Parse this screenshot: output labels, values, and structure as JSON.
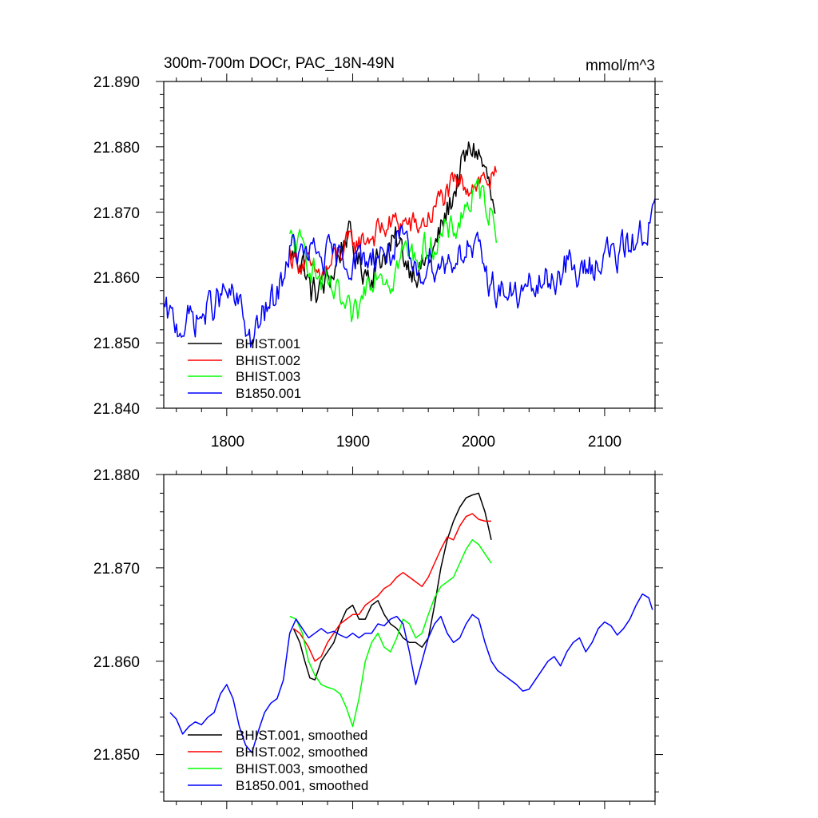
{
  "chart_data": [
    {
      "type": "line",
      "title": "300m-700m DOCr, PAC_18N-49N",
      "units": "mmol/m^3",
      "xlim": [
        1750,
        2140
      ],
      "ylim": [
        21.84,
        21.89
      ],
      "xticks": [
        1800,
        1900,
        2000,
        2100
      ],
      "xtick_labels": [
        "1800",
        "1900",
        "2000",
        "2100"
      ],
      "yticks": [
        21.84,
        21.85,
        21.86,
        21.87,
        21.88,
        21.89
      ],
      "ytick_labels": [
        "21.840",
        "21.850",
        "21.860",
        "21.870",
        "21.880",
        "21.890"
      ],
      "legend_position": "bottom-left",
      "series": [
        {
          "name": "BHIST.001",
          "color": "#000000",
          "noise": 0.0022,
          "x": [
            1850,
            1860,
            1867,
            1875,
            1885,
            1895,
            1905,
            1915,
            1925,
            1935,
            1945,
            1955,
            1965,
            1975,
            1985,
            1990,
            1995,
            2000,
            2005,
            2008,
            2013
          ],
          "y": [
            21.8635,
            21.863,
            21.8575,
            21.858,
            21.861,
            21.867,
            21.862,
            21.861,
            21.864,
            21.865,
            21.862,
            21.8615,
            21.864,
            21.87,
            21.876,
            21.878,
            21.88,
            21.879,
            21.876,
            21.874,
            21.8685
          ]
        },
        {
          "name": "BHIST.002",
          "color": "#ff0000",
          "noise": 0.0018,
          "x": [
            1850,
            1860,
            1870,
            1880,
            1890,
            1900,
            1910,
            1920,
            1930,
            1940,
            1950,
            1960,
            1970,
            1980,
            1990,
            2000,
            2005,
            2010,
            2014
          ],
          "y": [
            21.8635,
            21.8625,
            21.86,
            21.861,
            21.864,
            21.865,
            21.866,
            21.867,
            21.868,
            21.8685,
            21.8675,
            21.869,
            21.872,
            21.8735,
            21.8745,
            21.875,
            21.8752,
            21.8748,
            21.875
          ]
        },
        {
          "name": "BHIST.003",
          "color": "#00ff00",
          "noise": 0.002,
          "x": [
            1850,
            1855,
            1865,
            1875,
            1885,
            1895,
            1900,
            1905,
            1912,
            1920,
            1930,
            1940,
            1950,
            1960,
            1970,
            1980,
            1990,
            2000,
            2005,
            2010,
            2014
          ],
          "y": [
            21.8655,
            21.865,
            21.863,
            21.859,
            21.8575,
            21.8545,
            21.853,
            21.8545,
            21.86,
            21.862,
            21.86,
            21.864,
            21.863,
            21.865,
            21.866,
            21.867,
            21.871,
            21.873,
            21.872,
            21.87,
            21.8675
          ]
        },
        {
          "name": "B1850.001",
          "color": "#0000ff",
          "noise": 0.0022,
          "x": [
            1750,
            1760,
            1770,
            1780,
            1790,
            1800,
            1810,
            1820,
            1830,
            1840,
            1850,
            1860,
            1870,
            1880,
            1890,
            1900,
            1910,
            1920,
            1930,
            1940,
            1950,
            1960,
            1970,
            1980,
            1990,
            2000,
            2010,
            2020,
            2030,
            2040,
            2050,
            2060,
            2070,
            2080,
            2090,
            2100,
            2110,
            2120,
            2130,
            2140
          ],
          "y": [
            21.8545,
            21.8525,
            21.8535,
            21.854,
            21.856,
            21.8575,
            21.8555,
            21.85,
            21.8545,
            21.857,
            21.8645,
            21.863,
            21.8635,
            21.863,
            21.8625,
            21.863,
            21.8625,
            21.864,
            21.864,
            21.865,
            21.86,
            21.863,
            21.862,
            21.863,
            21.865,
            21.863,
            21.859,
            21.858,
            21.857,
            21.858,
            21.859,
            21.86,
            21.862,
            21.86,
            21.862,
            21.864,
            21.863,
            21.865,
            21.867,
            21.87
          ]
        }
      ]
    },
    {
      "type": "line",
      "title": "",
      "xlim": [
        1750,
        2140
      ],
      "ylim": [
        21.845,
        21.88
      ],
      "xticks": [
        1800,
        1900,
        2000,
        2100
      ],
      "yticks": [
        21.85,
        21.86,
        21.87,
        21.88
      ],
      "ytick_labels": [
        "21.850",
        "21.860",
        "21.870",
        "21.880"
      ],
      "legend_position": "bottom-left",
      "series": [
        {
          "name": "BHIST.001, smoothed",
          "color": "#000000",
          "x": [
            1853,
            1858,
            1862,
            1866,
            1870,
            1875,
            1880,
            1885,
            1890,
            1895,
            1900,
            1905,
            1910,
            1915,
            1920,
            1925,
            1930,
            1935,
            1940,
            1945,
            1950,
            1955,
            1960,
            1965,
            1970,
            1975,
            1980,
            1985,
            1990,
            1995,
            2000,
            2005,
            2010
          ],
          "y": [
            21.8635,
            21.862,
            21.86,
            21.8582,
            21.858,
            21.86,
            21.861,
            21.862,
            21.864,
            21.8655,
            21.866,
            21.8645,
            21.8645,
            21.866,
            21.8665,
            21.865,
            21.864,
            21.8635,
            21.8625,
            21.862,
            21.862,
            21.8615,
            21.8625,
            21.866,
            21.87,
            21.873,
            21.875,
            21.8765,
            21.8775,
            21.8778,
            21.878,
            21.876,
            21.873
          ]
        },
        {
          "name": "BHIST.002, smoothed",
          "color": "#ff0000",
          "x": [
            1853,
            1858,
            1865,
            1870,
            1875,
            1880,
            1885,
            1890,
            1895,
            1900,
            1905,
            1910,
            1915,
            1920,
            1925,
            1930,
            1935,
            1940,
            1945,
            1950,
            1955,
            1960,
            1965,
            1970,
            1975,
            1980,
            1985,
            1990,
            1995,
            2000,
            2005,
            2010
          ],
          "y": [
            21.8635,
            21.863,
            21.8615,
            21.86,
            21.8605,
            21.862,
            21.863,
            21.864,
            21.8645,
            21.865,
            21.865,
            21.866,
            21.8665,
            21.867,
            21.8678,
            21.8682,
            21.869,
            21.8695,
            21.869,
            21.8685,
            21.868,
            21.869,
            21.8705,
            21.872,
            21.8733,
            21.873,
            21.8745,
            21.8755,
            21.8758,
            21.8752,
            21.875,
            21.875
          ]
        },
        {
          "name": "BHIST.003, smoothed",
          "color": "#00ff00",
          "x": [
            1850,
            1855,
            1860,
            1865,
            1870,
            1875,
            1880,
            1885,
            1890,
            1895,
            1900,
            1905,
            1910,
            1915,
            1920,
            1925,
            1930,
            1935,
            1940,
            1945,
            1950,
            1955,
            1960,
            1965,
            1970,
            1975,
            1980,
            1985,
            1990,
            1995,
            2000,
            2005,
            2010
          ],
          "y": [
            21.8648,
            21.8645,
            21.863,
            21.86,
            21.8585,
            21.8575,
            21.8572,
            21.857,
            21.8565,
            21.855,
            21.853,
            21.856,
            21.86,
            21.862,
            21.863,
            21.8615,
            21.861,
            21.8625,
            21.8645,
            21.864,
            21.8625,
            21.863,
            21.865,
            21.8668,
            21.868,
            21.8685,
            21.869,
            21.8705,
            21.872,
            21.873,
            21.8725,
            21.8715,
            21.8705
          ]
        },
        {
          "name": "B1850.001, smoothed",
          "color": "#0000ff",
          "x": [
            1755,
            1760,
            1765,
            1770,
            1775,
            1780,
            1785,
            1790,
            1795,
            1800,
            1805,
            1810,
            1815,
            1820,
            1825,
            1830,
            1835,
            1840,
            1845,
            1850,
            1855,
            1860,
            1865,
            1870,
            1875,
            1880,
            1885,
            1890,
            1895,
            1900,
            1905,
            1910,
            1915,
            1920,
            1925,
            1930,
            1935,
            1940,
            1945,
            1950,
            1955,
            1960,
            1965,
            1970,
            1975,
            1980,
            1985,
            1990,
            1995,
            2000,
            2005,
            2010,
            2015,
            2020,
            2025,
            2030,
            2035,
            2040,
            2045,
            2050,
            2055,
            2060,
            2065,
            2070,
            2075,
            2080,
            2085,
            2090,
            2095,
            2100,
            2105,
            2110,
            2115,
            2120,
            2125,
            2130,
            2135,
            2138
          ],
          "y": [
            21.8545,
            21.8538,
            21.8522,
            21.853,
            21.8535,
            21.8532,
            21.854,
            21.8545,
            21.8565,
            21.8575,
            21.856,
            21.853,
            21.851,
            21.8502,
            21.8525,
            21.8545,
            21.8555,
            21.856,
            21.858,
            21.863,
            21.8645,
            21.8635,
            21.8625,
            21.863,
            21.8635,
            21.863,
            21.8632,
            21.8628,
            21.8625,
            21.863,
            21.8625,
            21.863,
            21.863,
            21.864,
            21.8638,
            21.8645,
            21.8648,
            21.864,
            21.861,
            21.8575,
            21.86,
            21.8625,
            21.864,
            21.8648,
            21.863,
            21.862,
            21.8625,
            21.864,
            21.865,
            21.8645,
            21.862,
            21.86,
            21.859,
            21.8585,
            21.858,
            21.8575,
            21.8568,
            21.857,
            21.858,
            21.859,
            21.86,
            21.8605,
            21.8595,
            21.861,
            21.862,
            21.8625,
            21.861,
            21.862,
            21.8635,
            21.8642,
            21.8638,
            21.8628,
            21.8635,
            21.8645,
            21.866,
            21.8672,
            21.8668,
            21.8655
          ]
        }
      ]
    }
  ]
}
